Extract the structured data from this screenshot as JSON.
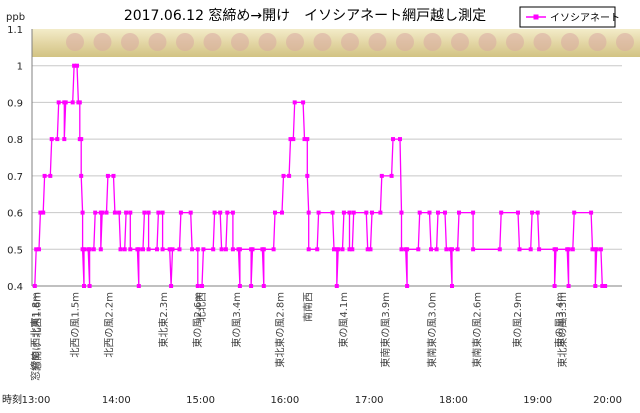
{
  "chart_data": {
    "type": "line",
    "title": "2017.06.12 窓締め→開け　イソシアネート網戸越し測定",
    "ylabel": "ppb",
    "xlabel": "時刻",
    "ylim": [
      0.4,
      1.1
    ],
    "y_ticks": [
      "0.4",
      "0.5",
      "0.6",
      "0.7",
      "0.8",
      "0.9",
      "1",
      "1.1"
    ],
    "xlim": [
      "13:00",
      "20:00"
    ],
    "x_ticks": [
      {
        "t": "13:00",
        "label": "13:00"
      },
      {
        "t": "14:00",
        "label": "14:00"
      },
      {
        "t": "15:00",
        "label": "15:00"
      },
      {
        "t": "16:00",
        "label": "16:00"
      },
      {
        "t": "17:00",
        "label": "17:00"
      },
      {
        "t": "18:00",
        "label": "18:00"
      },
      {
        "t": "19:00",
        "label": "19:00"
      },
      {
        "t": "20:00",
        "label": "20:00"
      }
    ],
    "grid": true,
    "legend": "top-right",
    "series": [
      {
        "name": "イソシアネート",
        "color": "#ff00ff",
        "points": [
          [
            "13:02",
            0.4
          ],
          [
            "13:03",
            0.5
          ],
          [
            "13:05",
            0.5
          ],
          [
            "13:06",
            0.6
          ],
          [
            "13:08",
            0.6
          ],
          [
            "13:09",
            0.7
          ],
          [
            "13:13",
            0.7
          ],
          [
            "13:14",
            0.8
          ],
          [
            "13:18",
            0.8
          ],
          [
            "13:19",
            0.9
          ],
          [
            "13:23",
            0.9
          ],
          [
            "13:23",
            0.8
          ],
          [
            "13:24",
            0.9
          ],
          [
            "13:29",
            0.9
          ],
          [
            "13:30",
            1.0
          ],
          [
            "13:32",
            1.0
          ],
          [
            "13:33",
            0.9
          ],
          [
            "13:34",
            0.9
          ],
          [
            "13:34",
            0.8
          ],
          [
            "13:35",
            0.8
          ],
          [
            "13:35",
            0.7
          ],
          [
            "13:36",
            0.6
          ],
          [
            "13:36",
            0.5
          ],
          [
            "13:37",
            0.4
          ],
          [
            "13:37",
            0.5
          ],
          [
            "13:40",
            0.5
          ],
          [
            "13:41",
            0.4
          ],
          [
            "13:41",
            0.5
          ],
          [
            "13:44",
            0.5
          ],
          [
            "13:45",
            0.6
          ],
          [
            "13:49",
            0.6
          ],
          [
            "13:49",
            0.5
          ],
          [
            "13:50",
            0.6
          ],
          [
            "13:53",
            0.6
          ],
          [
            "13:54",
            0.7
          ],
          [
            "13:58",
            0.7
          ],
          [
            "13:59",
            0.6
          ],
          [
            "14:02",
            0.6
          ],
          [
            "14:03",
            0.5
          ],
          [
            "14:06",
            0.5
          ],
          [
            "14:07",
            0.6
          ],
          [
            "14:10",
            0.6
          ],
          [
            "14:10",
            0.5
          ],
          [
            "14:15",
            0.5
          ],
          [
            "14:16",
            0.4
          ],
          [
            "14:16",
            0.5
          ],
          [
            "14:19",
            0.5
          ],
          [
            "14:20",
            0.6
          ],
          [
            "14:23",
            0.6
          ],
          [
            "14:23",
            0.5
          ],
          [
            "14:29",
            0.5
          ],
          [
            "14:30",
            0.6
          ],
          [
            "14:33",
            0.6
          ],
          [
            "14:33",
            0.5
          ],
          [
            "14:38",
            0.5
          ],
          [
            "14:39",
            0.4
          ],
          [
            "14:40",
            0.5
          ],
          [
            "14:45",
            0.5
          ],
          [
            "14:46",
            0.6
          ],
          [
            "14:53",
            0.6
          ],
          [
            "14:54",
            0.5
          ],
          [
            "14:58",
            0.5
          ],
          [
            "14:58",
            0.4
          ],
          [
            "15:01",
            0.4
          ],
          [
            "15:02",
            0.5
          ],
          [
            "15:09",
            0.5
          ],
          [
            "15:10",
            0.6
          ],
          [
            "15:14",
            0.6
          ],
          [
            "15:15",
            0.5
          ],
          [
            "15:18",
            0.5
          ],
          [
            "15:19",
            0.6
          ],
          [
            "15:23",
            0.6
          ],
          [
            "15:23",
            0.5
          ],
          [
            "15:27",
            0.5
          ],
          [
            "15:28",
            0.4
          ],
          [
            "15:28",
            0.5
          ],
          [
            "15:36",
            0.5
          ],
          [
            "15:36",
            0.4
          ],
          [
            "15:37",
            0.5
          ],
          [
            "15:44",
            0.5
          ],
          [
            "15:45",
            0.4
          ],
          [
            "15:45",
            0.5
          ],
          [
            "15:52",
            0.5
          ],
          [
            "15:53",
            0.6
          ],
          [
            "15:58",
            0.6
          ],
          [
            "15:59",
            0.7
          ],
          [
            "16:03",
            0.7
          ],
          [
            "16:04",
            0.8
          ],
          [
            "16:06",
            0.8
          ],
          [
            "16:07",
            0.9
          ],
          [
            "16:13",
            0.9
          ],
          [
            "16:14",
            0.8
          ],
          [
            "16:16",
            0.8
          ],
          [
            "16:16",
            0.7
          ],
          [
            "16:17",
            0.6
          ],
          [
            "16:17",
            0.5
          ],
          [
            "16:23",
            0.5
          ],
          [
            "16:24",
            0.6
          ],
          [
            "16:34",
            0.6
          ],
          [
            "16:35",
            0.5
          ],
          [
            "16:37",
            0.5
          ],
          [
            "16:37",
            0.4
          ],
          [
            "16:38",
            0.5
          ],
          [
            "16:41",
            0.5
          ],
          [
            "16:42",
            0.6
          ],
          [
            "16:46",
            0.6
          ],
          [
            "16:46",
            0.5
          ],
          [
            "16:48",
            0.5
          ],
          [
            "16:49",
            0.6
          ],
          [
            "16:58",
            0.6
          ],
          [
            "16:59",
            0.5
          ],
          [
            "17:01",
            0.5
          ],
          [
            "17:02",
            0.6
          ],
          [
            "17:08",
            0.6
          ],
          [
            "17:09",
            0.7
          ],
          [
            "17:16",
            0.7
          ],
          [
            "17:17",
            0.8
          ],
          [
            "17:22",
            0.8
          ],
          [
            "17:23",
            0.6
          ],
          [
            "17:23",
            0.5
          ],
          [
            "17:26",
            0.5
          ],
          [
            "17:27",
            0.4
          ],
          [
            "17:27",
            0.5
          ],
          [
            "17:35",
            0.5
          ],
          [
            "17:36",
            0.6
          ],
          [
            "17:43",
            0.6
          ],
          [
            "17:44",
            0.5
          ],
          [
            "17:48",
            0.5
          ],
          [
            "17:49",
            0.6
          ],
          [
            "17:54",
            0.6
          ],
          [
            "17:55",
            0.5
          ],
          [
            "17:58",
            0.5
          ],
          [
            "17:59",
            0.4
          ],
          [
            "17:59",
            0.5
          ],
          [
            "18:03",
            0.5
          ],
          [
            "18:04",
            0.6
          ],
          [
            "18:14",
            0.6
          ],
          [
            "18:14",
            0.5
          ],
          [
            "18:33",
            0.5
          ],
          [
            "18:34",
            0.6
          ],
          [
            "18:46",
            0.6
          ],
          [
            "18:47",
            0.5
          ],
          [
            "18:55",
            0.5
          ],
          [
            "18:56",
            0.6
          ],
          [
            "19:00",
            0.6
          ],
          [
            "19:01",
            0.5
          ],
          [
            "19:12",
            0.5
          ],
          [
            "19:12",
            0.4
          ],
          [
            "19:13",
            0.5
          ],
          [
            "19:21",
            0.5
          ],
          [
            "19:22",
            0.4
          ],
          [
            "19:22",
            0.5
          ],
          [
            "19:25",
            0.5
          ],
          [
            "19:26",
            0.6
          ],
          [
            "19:38",
            0.6
          ],
          [
            "19:39",
            0.5
          ],
          [
            "19:41",
            0.5
          ],
          [
            "19:41",
            0.4
          ],
          [
            "19:42",
            0.5
          ],
          [
            "19:45",
            0.5
          ],
          [
            "19:46",
            0.4
          ],
          [
            "19:48",
            0.4
          ]
        ]
      }
    ],
    "annotations": [
      {
        "t": "13:03",
        "label": "窓締め 西北東1.8m"
      },
      {
        "t": "13:04",
        "label": "窓開け 北西1.6m"
      },
      {
        "t": "13:31",
        "label": "北西の風1.5m"
      },
      {
        "t": "13:55",
        "label": "北西の風2.2m"
      },
      {
        "t": "14:34",
        "label": "東北東2.3m"
      },
      {
        "t": "14:58",
        "label": "東の風2.6m"
      },
      {
        "t": "15:01",
        "label": "北北西"
      },
      {
        "t": "15:26",
        "label": "東の風3.4m"
      },
      {
        "t": "15:57",
        "label": "東北東の風2.8m"
      },
      {
        "t": "16:17",
        "label": "南南西"
      },
      {
        "t": "16:42",
        "label": "東の風4.1m"
      },
      {
        "t": "17:12",
        "label": "東南東の風3.9m"
      },
      {
        "t": "17:45",
        "label": "東南東の風3.0m"
      },
      {
        "t": "18:17",
        "label": "東南東の風2.6m"
      },
      {
        "t": "18:46",
        "label": "東の風2.9m"
      },
      {
        "t": "19:16",
        "label": "東の風3.4m"
      },
      {
        "t": "19:18",
        "label": "東北東の風3.3m"
      }
    ]
  }
}
